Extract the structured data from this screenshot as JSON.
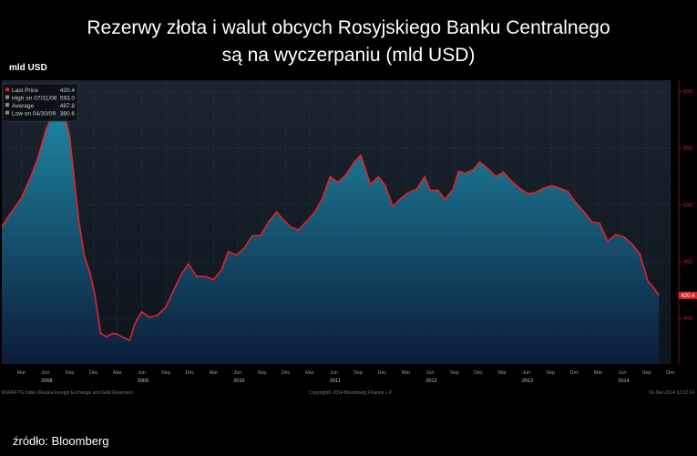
{
  "title_line1": "Rezerwy złota i walut obcych Rosyjskiego Banku Centralnego",
  "title_line2": "są na wyczerpaniu (mld USD)",
  "unit_label": "mld USD",
  "source": "źródło: Bloomberg",
  "colors": {
    "line": "#e8202a",
    "fill_top": "#1f8aa6",
    "fill_bottom": "#0b1d3a",
    "background": "#111a24"
  },
  "chart_data": {
    "type": "area",
    "ylim": [
      360,
      610
    ],
    "yticks": [
      400,
      450,
      500,
      550,
      600
    ],
    "grid": true,
    "legend_position": "top-left",
    "last_value_label": "420.4",
    "legend": [
      {
        "label": "Last Price",
        "value": "420.4"
      },
      {
        "label": "High on 07/31/08",
        "value": "593.0"
      },
      {
        "label": "Average",
        "value": "487.8"
      },
      {
        "label": "Low on 04/30/09",
        "value": "380.6"
      }
    ],
    "x_labels": [
      "Mar",
      "Jun",
      "Sep",
      "Dec",
      "Mar",
      "Jun",
      "Sep",
      "Dec",
      "Mar",
      "Jun",
      "Sep",
      "Dec",
      "Mar",
      "Jun",
      "Sep",
      "Dec",
      "Mar",
      "Jun",
      "Sep",
      "Dec",
      "Mar",
      "Jun",
      "Sep",
      "Dec",
      "Mar",
      "Jun",
      "Sep",
      "Dec"
    ],
    "years": [
      "2008",
      "2009",
      "2010",
      "2011",
      "2012",
      "2013",
      "2014"
    ],
    "footer_left": "RUREFTG Index (Russia Foreign Exchange and Gold Reserves)",
    "footer_center": "Copyright© 2014 Bloomberg Finance L.P.",
    "footer_right": "02-Dec-2014 12:22:14",
    "series": [
      {
        "values": [
          [
            "2008-01-01",
            481
          ],
          [
            "2008-02-01",
            492
          ],
          [
            "2008-03-15",
            506
          ],
          [
            "2008-04-15",
            522
          ],
          [
            "2008-05-15",
            540
          ],
          [
            "2008-06-15",
            565
          ],
          [
            "2008-07-31",
            593
          ],
          [
            "2008-08-15",
            585
          ],
          [
            "2008-09-01",
            575
          ],
          [
            "2008-09-15",
            560
          ],
          [
            "2008-10-01",
            525
          ],
          [
            "2008-10-20",
            485
          ],
          [
            "2008-11-10",
            455
          ],
          [
            "2008-12-01",
            440
          ],
          [
            "2008-12-20",
            420
          ],
          [
            "2009-01-10",
            387
          ],
          [
            "2009-02-01",
            384
          ],
          [
            "2009-03-01",
            387
          ],
          [
            "2009-03-15",
            386
          ],
          [
            "2009-04-30",
            380.6
          ],
          [
            "2009-05-20",
            395
          ],
          [
            "2009-06-15",
            406
          ],
          [
            "2009-07-15",
            401
          ],
          [
            "2009-08-15",
            403
          ],
          [
            "2009-09-15",
            410
          ],
          [
            "2009-10-15",
            425
          ],
          [
            "2009-11-15",
            440
          ],
          [
            "2009-12-10",
            448
          ],
          [
            "2010-01-10",
            437
          ],
          [
            "2010-02-15",
            437
          ],
          [
            "2010-03-15",
            434
          ],
          [
            "2010-04-15",
            443
          ],
          [
            "2010-05-10",
            459
          ],
          [
            "2010-06-10",
            456
          ],
          [
            "2010-07-10",
            462
          ],
          [
            "2010-08-10",
            473
          ],
          [
            "2010-09-10",
            473
          ],
          [
            "2010-10-10",
            485
          ],
          [
            "2010-11-10",
            494
          ],
          [
            "2010-12-01",
            488
          ],
          [
            "2011-01-01",
            481
          ],
          [
            "2011-02-01",
            478
          ],
          [
            "2011-03-01",
            485
          ],
          [
            "2011-04-01",
            493
          ],
          [
            "2011-05-01",
            505
          ],
          [
            "2011-06-01",
            525
          ],
          [
            "2011-07-01",
            520
          ],
          [
            "2011-08-01",
            527
          ],
          [
            "2011-09-01",
            538
          ],
          [
            "2011-09-25",
            544
          ],
          [
            "2011-10-15",
            530
          ],
          [
            "2011-11-01",
            518
          ],
          [
            "2011-12-01",
            525
          ],
          [
            "2011-12-25",
            518
          ],
          [
            "2012-01-25",
            499
          ],
          [
            "2012-02-25",
            506
          ],
          [
            "2012-03-25",
            511
          ],
          [
            "2012-04-25",
            514
          ],
          [
            "2012-05-25",
            525
          ],
          [
            "2012-06-15",
            513
          ],
          [
            "2012-07-15",
            513
          ],
          [
            "2012-08-10",
            505
          ],
          [
            "2012-09-10",
            514
          ],
          [
            "2012-10-01",
            530
          ],
          [
            "2012-10-25",
            528
          ],
          [
            "2012-11-25",
            531
          ],
          [
            "2012-12-20",
            538
          ],
          [
            "2013-01-20",
            532
          ],
          [
            "2013-02-20",
            525
          ],
          [
            "2013-03-20",
            529
          ],
          [
            "2013-04-20",
            521
          ],
          [
            "2013-05-20",
            515
          ],
          [
            "2013-06-20",
            510
          ],
          [
            "2013-07-20",
            511
          ],
          [
            "2013-08-20",
            515
          ],
          [
            "2013-09-20",
            517
          ],
          [
            "2013-10-20",
            515
          ],
          [
            "2013-11-20",
            512
          ],
          [
            "2013-12-20",
            502
          ],
          [
            "2014-01-20",
            494
          ],
          [
            "2014-02-20",
            485
          ],
          [
            "2014-03-20",
            484
          ],
          [
            "2014-04-20",
            468
          ],
          [
            "2014-05-20",
            474
          ],
          [
            "2014-06-20",
            472
          ],
          [
            "2014-07-20",
            466
          ],
          [
            "2014-08-20",
            457
          ],
          [
            "2014-09-20",
            433
          ],
          [
            "2014-10-15",
            426
          ],
          [
            "2014-11-01",
            420.4
          ]
        ]
      }
    ]
  }
}
